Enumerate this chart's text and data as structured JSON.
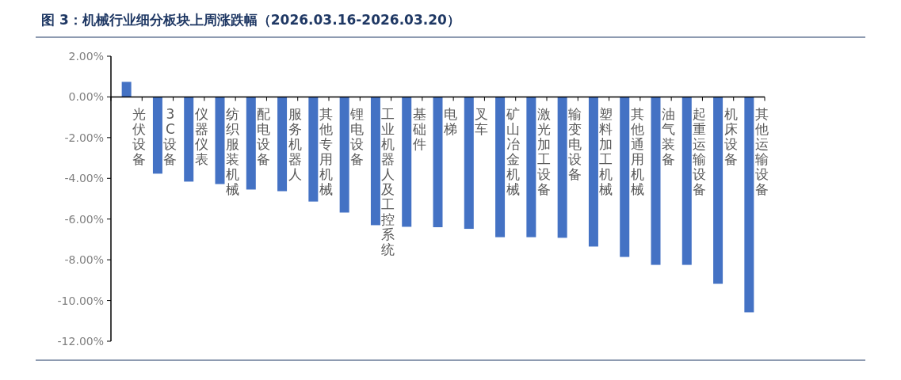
{
  "chart_data": {
    "type": "bar",
    "title": "图 3：机械行业细分板块上周涨跌幅（2026.03.16-2026.03.20）",
    "categories": [
      "光伏设备",
      "3C设备",
      "仪器仪表",
      "纺织服装机械",
      "配电设备",
      "服务机器人",
      "其他专用机械",
      "锂电设备",
      "工业机器人及工控系统",
      "基础件",
      "电梯",
      "叉车",
      "矿山冶金机械",
      "激光加工设备",
      "输变电设备",
      "塑料加工机械",
      "其他通用机械",
      "油气装备",
      "起重运输设备",
      "机床设备",
      "其他运输设备"
    ],
    "values": [
      0.74,
      -3.77,
      -4.16,
      -4.28,
      -4.55,
      -4.63,
      -5.14,
      -5.68,
      -6.3,
      -6.38,
      -6.4,
      -6.48,
      -6.89,
      -6.89,
      -6.92,
      -7.35,
      -7.86,
      -8.25,
      -8.25,
      -9.18,
      -10.58
    ],
    "color": "#4472c4",
    "ylim": [
      -12,
      2
    ],
    "yticks": [
      {
        "value": 2,
        "label": "2.00%"
      },
      {
        "value": 0,
        "label": "0.00%"
      },
      {
        "value": -2,
        "label": "-2.00%"
      },
      {
        "value": -4,
        "label": "-4.00%"
      },
      {
        "value": -6,
        "label": "-6.00%"
      },
      {
        "value": -8,
        "label": "-8.00%"
      },
      {
        "value": -10,
        "label": "-10.00%"
      },
      {
        "value": -12,
        "label": "-12.00%"
      }
    ]
  }
}
